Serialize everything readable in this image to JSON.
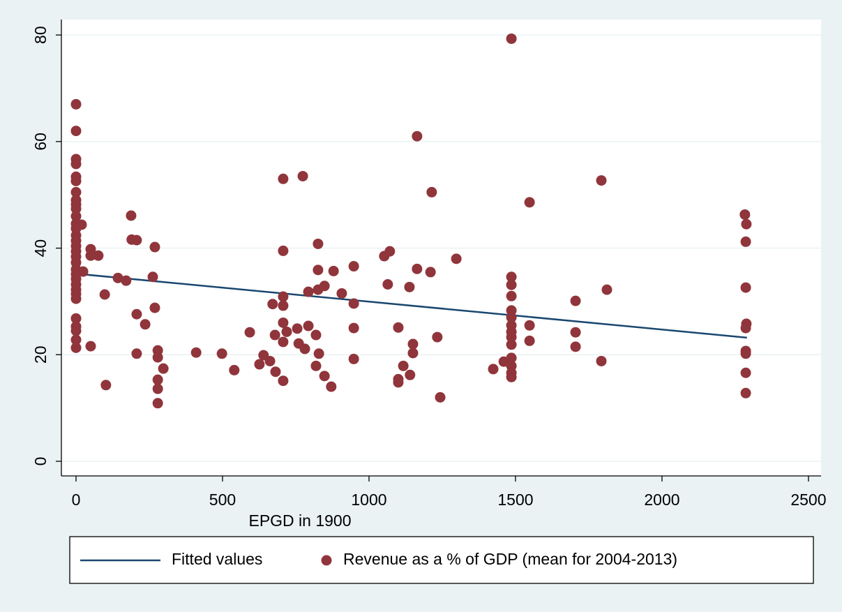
{
  "chart_data": {
    "type": "scatter",
    "xlabel": "EPGD in 1900",
    "xlim": [
      -50,
      2543
    ],
    "ylim": [
      -2.75,
      82.9
    ],
    "xticks": [
      0,
      500,
      1000,
      1500,
      2000,
      2500
    ],
    "yticks": [
      0,
      20,
      40,
      60,
      80
    ],
    "grid": true,
    "legend": "bottom",
    "series": [
      {
        "name": "Fitted values",
        "type": "line",
        "color": "#1a476f",
        "x": [
          0,
          2290
        ],
        "values": [
          35.2,
          23.2
        ]
      },
      {
        "name": "Revenue as a % of GDP (mean for 2004-2013)",
        "type": "scatter",
        "color": "#90353b",
        "x": [
          0,
          0,
          0,
          0,
          0,
          0,
          0,
          0,
          0,
          0,
          0,
          0,
          0,
          0,
          0,
          0,
          0,
          0,
          0,
          0,
          0,
          0,
          0,
          0,
          0,
          0,
          0,
          0,
          0,
          0,
          0,
          19,
          24,
          50,
          50,
          50,
          76,
          98,
          102,
          143,
          171,
          188,
          190,
          207,
          207,
          207,
          236,
          262,
          269,
          269,
          279,
          279,
          279,
          279,
          279,
          298,
          410,
          498,
          540,
          593,
          626,
          640,
          662,
          671,
          679,
          681,
          707,
          707,
          707,
          707,
          707,
          707,
          707,
          719,
          755,
          760,
          774,
          781,
          793,
          793,
          819,
          819,
          826,
          826,
          826,
          829,
          848,
          848,
          871,
          879,
          907,
          948,
          948,
          948,
          948,
          1052,
          1071,
          1064,
          1100,
          1100,
          1100,
          1117,
          1138,
          1140,
          1150,
          1150,
          1164,
          1164,
          1210,
          1214,
          1233,
          1243,
          1298,
          1424,
          1460,
          1486,
          1486,
          1486,
          1486,
          1486,
          1486,
          1486,
          1486,
          1486,
          1486,
          1486,
          1486,
          1486,
          1486,
          1548,
          1548,
          1548,
          1705,
          1705,
          1705,
          1793,
          1793,
          1812,
          2283,
          2288,
          2286,
          2286,
          2288,
          2286,
          2286,
          2286,
          2286,
          2286
        ],
        "values": [
          67,
          62,
          56.7,
          55.8,
          53.4,
          52.6,
          50.5,
          49,
          48.2,
          47.4,
          46,
          44.6,
          43.7,
          42.4,
          41.4,
          40.4,
          39.4,
          38.4,
          37.3,
          36,
          35.1,
          34.2,
          33.2,
          32.2,
          31.4,
          30.5,
          26.8,
          25.3,
          24.5,
          22.8,
          21.3,
          44.4,
          35.6,
          39.8,
          38.6,
          21.6,
          38.6,
          31.3,
          14.3,
          34.4,
          33.9,
          46.1,
          41.6,
          41.5,
          27.6,
          20.2,
          25.7,
          34.6,
          40.2,
          28.8,
          20.8,
          19.5,
          15.3,
          13.6,
          10.9,
          17.4,
          20.4,
          20.2,
          17.1,
          24.2,
          18.2,
          19.9,
          18.8,
          29.5,
          23.7,
          16.8,
          53,
          39.5,
          30.9,
          29.2,
          26,
          22.4,
          15.1,
          24.3,
          24.9,
          22.1,
          53.5,
          21.1,
          31.8,
          25.4,
          23.7,
          17.9,
          40.8,
          35.9,
          32.2,
          20.2,
          32.9,
          16,
          14,
          35.7,
          31.5,
          36.6,
          29.6,
          25,
          19.2,
          38.5,
          39.4,
          33.2,
          25.1,
          15.4,
          14.8,
          17.9,
          32.7,
          16.2,
          22,
          20.3,
          61,
          36.1,
          35.5,
          50.5,
          23.3,
          12,
          38,
          17.3,
          18.7,
          79.3,
          34.6,
          33.1,
          31,
          28.3,
          27,
          25.5,
          24.3,
          23.3,
          21.9,
          19.4,
          17.9,
          16.6,
          15.8,
          48.6,
          25.5,
          22.6,
          30.1,
          24.2,
          21.5,
          52.7,
          18.8,
          32.2,
          46.3,
          44.5,
          41.2,
          32.6,
          25.8,
          25,
          20.7,
          20.2,
          12.8,
          16.6
        ]
      }
    ]
  }
}
